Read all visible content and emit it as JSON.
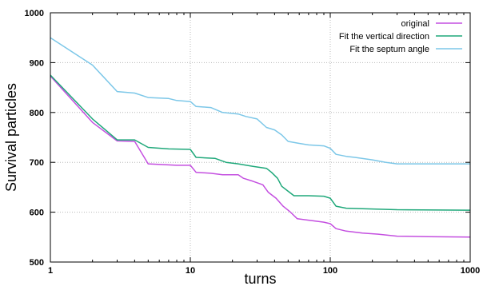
{
  "chart_data": {
    "type": "line",
    "title": "",
    "xlabel": "turns",
    "ylabel": "Survival particles",
    "x_scale": "log",
    "xlim": [
      1,
      1000
    ],
    "ylim": [
      500,
      1000
    ],
    "x_ticks": [
      1,
      10,
      100,
      1000
    ],
    "x_tick_labels": [
      "1",
      "10",
      "100",
      "1000"
    ],
    "y_ticks": [
      500,
      600,
      700,
      800,
      900,
      1000
    ],
    "y_tick_labels": [
      "500",
      "600",
      "700",
      "800",
      "900",
      "1000"
    ],
    "grid": true,
    "legend_position": "top-right",
    "series": [
      {
        "name": "original",
        "color": "#c44fe0",
        "points": [
          [
            1,
            873
          ],
          [
            2,
            780
          ],
          [
            3,
            743
          ],
          [
            4,
            742
          ],
          [
            5,
            697
          ],
          [
            8,
            694
          ],
          [
            10,
            694
          ],
          [
            11,
            680
          ],
          [
            14,
            678
          ],
          [
            17,
            675
          ],
          [
            22,
            675
          ],
          [
            24,
            668
          ],
          [
            28,
            662
          ],
          [
            33,
            655
          ],
          [
            36,
            640
          ],
          [
            41,
            628
          ],
          [
            46,
            612
          ],
          [
            52,
            600
          ],
          [
            58,
            587
          ],
          [
            70,
            584
          ],
          [
            90,
            580
          ],
          [
            100,
            577
          ],
          [
            110,
            567
          ],
          [
            130,
            562
          ],
          [
            170,
            558
          ],
          [
            220,
            556
          ],
          [
            300,
            552
          ],
          [
            500,
            551
          ],
          [
            1000,
            550
          ]
        ]
      },
      {
        "name": "Fit the vertical direction",
        "color": "#1fa87a",
        "points": [
          [
            1,
            875
          ],
          [
            2,
            787
          ],
          [
            3,
            745
          ],
          [
            4,
            745
          ],
          [
            5,
            730
          ],
          [
            7,
            727
          ],
          [
            10,
            726
          ],
          [
            11,
            710
          ],
          [
            15,
            708
          ],
          [
            18,
            700
          ],
          [
            22,
            697
          ],
          [
            28,
            692
          ],
          [
            35,
            688
          ],
          [
            38,
            680
          ],
          [
            42,
            668
          ],
          [
            45,
            652
          ],
          [
            50,
            642
          ],
          [
            55,
            633
          ],
          [
            70,
            633
          ],
          [
            90,
            632
          ],
          [
            100,
            628
          ],
          [
            110,
            612
          ],
          [
            130,
            608
          ],
          [
            170,
            607
          ],
          [
            300,
            605
          ],
          [
            1000,
            604
          ]
        ]
      },
      {
        "name": "Fit the septum angle",
        "color": "#7cc7e8",
        "points": [
          [
            1,
            950
          ],
          [
            2,
            895
          ],
          [
            3,
            842
          ],
          [
            4,
            839
          ],
          [
            5,
            830
          ],
          [
            7,
            828
          ],
          [
            8,
            824
          ],
          [
            10,
            822
          ],
          [
            11,
            812
          ],
          [
            14,
            810
          ],
          [
            17,
            800
          ],
          [
            22,
            797
          ],
          [
            25,
            792
          ],
          [
            30,
            787
          ],
          [
            35,
            770
          ],
          [
            40,
            765
          ],
          [
            45,
            755
          ],
          [
            50,
            742
          ],
          [
            60,
            738
          ],
          [
            70,
            735
          ],
          [
            90,
            733
          ],
          [
            100,
            728
          ],
          [
            110,
            716
          ],
          [
            130,
            712
          ],
          [
            150,
            710
          ],
          [
            200,
            705
          ],
          [
            250,
            700
          ],
          [
            300,
            697
          ],
          [
            1000,
            697
          ]
        ]
      }
    ]
  }
}
